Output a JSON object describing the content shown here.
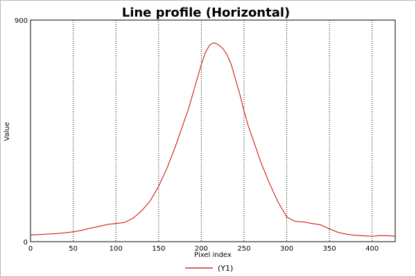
{
  "chart_data": {
    "type": "line",
    "title": "Line profile (Horizontal)",
    "xlabel": "Pixel index",
    "ylabel": "Value",
    "xlim": [
      0,
      427
    ],
    "ylim": [
      0,
      900
    ],
    "x_ticks": [
      0,
      50,
      100,
      150,
      200,
      250,
      300,
      350,
      400
    ],
    "y_ticks": [
      0,
      900
    ],
    "grid": "vertical-dotted",
    "legend_position": "bottom-center",
    "colors": {
      "series": "#cc0000",
      "grid": "#000000",
      "frame": "#000000"
    },
    "series": [
      {
        "name": "(Y1)",
        "x": [
          0,
          10,
          20,
          30,
          40,
          50,
          60,
          70,
          80,
          90,
          100,
          110,
          120,
          130,
          140,
          150,
          160,
          170,
          180,
          185,
          190,
          195,
          200,
          205,
          210,
          215,
          220,
          225,
          230,
          235,
          240,
          245,
          250,
          255,
          260,
          270,
          280,
          290,
          300,
          310,
          320,
          330,
          340,
          350,
          360,
          370,
          380,
          390,
          400,
          410,
          420,
          427
        ],
        "y": [
          27,
          29,
          31,
          33,
          36,
          40,
          46,
          55,
          62,
          70,
          74,
          78,
          95,
          125,
          165,
          225,
          300,
          390,
          490,
          540,
          600,
          660,
          720,
          770,
          800,
          808,
          800,
          785,
          760,
          720,
          660,
          600,
          530,
          470,
          420,
          320,
          235,
          160,
          100,
          82,
          80,
          74,
          68,
          52,
          38,
          30,
          26,
          24,
          22,
          25,
          24,
          22
        ]
      }
    ]
  }
}
